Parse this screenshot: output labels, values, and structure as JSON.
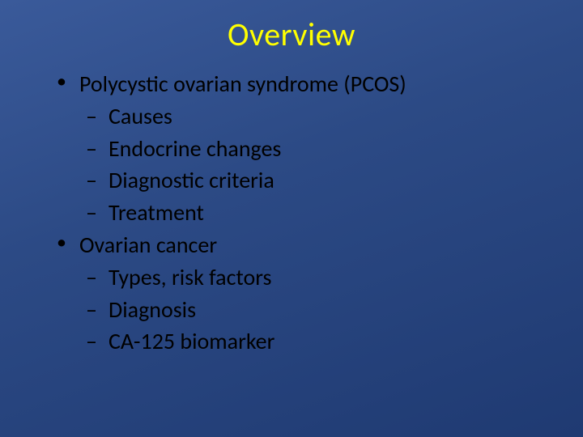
{
  "slide": {
    "title": "Overview",
    "title_color": "#ffff00",
    "text_color": "#000000",
    "bg_gradient_from": "#3a5a9a",
    "bg_gradient_to": "#1f3a72",
    "title_fontsize": 40,
    "body_fontsize": 28,
    "font_family": "Calibri",
    "bullets": [
      {
        "level": 1,
        "text": "Polycystic ovarian syndrome (PCOS)"
      },
      {
        "level": 2,
        "text": "Causes"
      },
      {
        "level": 2,
        "text": "Endocrine changes"
      },
      {
        "level": 2,
        "text": "Diagnostic criteria"
      },
      {
        "level": 2,
        "text": "Treatment"
      },
      {
        "level": 1,
        "text": "Ovarian cancer"
      },
      {
        "level": 2,
        "text": "Types, risk factors"
      },
      {
        "level": 2,
        "text": "Diagnosis"
      },
      {
        "level": 2,
        "text": "CA-125 biomarker"
      }
    ]
  }
}
